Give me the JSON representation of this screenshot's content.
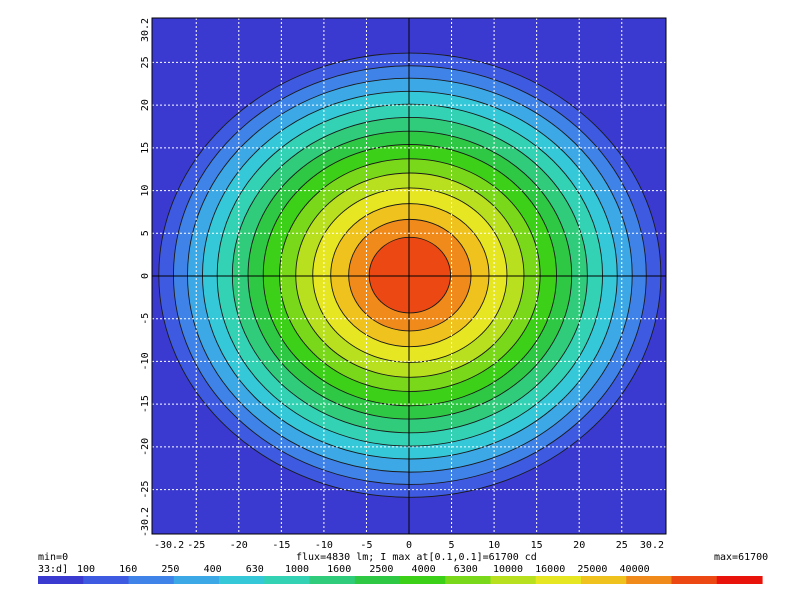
{
  "chart_data": {
    "type": "heatmap",
    "title": "",
    "xlabel": "",
    "ylabel": "",
    "xlim": [
      -30.2,
      30.2
    ],
    "ylim": [
      -30.2,
      30.2
    ],
    "x_ticks": [
      -25,
      -20,
      -15,
      -10,
      -5,
      0,
      5,
      10,
      15,
      20,
      25
    ],
    "y_ticks": [
      -25,
      -20,
      -15,
      -10,
      -5,
      0,
      5,
      10,
      15,
      20,
      25
    ],
    "x_edge_labels": [
      "-30.2",
      "30.2"
    ],
    "y_edge_labels": [
      "-30.2",
      "30.2"
    ],
    "grid": true,
    "min_label": "min=0",
    "max_label": "max=61700",
    "flux_label": "flux=4830 lm; I max at[0.1,0.1]=61700 cd",
    "scale_unit": "33:d]",
    "colorbar_ticks": [
      "100",
      "160",
      "250",
      "400",
      "630",
      "1000",
      "1600",
      "2500",
      "4000",
      "6300",
      "10000",
      "16000",
      "25000",
      "40000"
    ],
    "colorbar_colors": [
      "#3a3ad0",
      "#3e5ae0",
      "#3f82e8",
      "#3ca8e6",
      "#34c8d8",
      "#34d2b4",
      "#30cc7c",
      "#2ec844",
      "#3cd018",
      "#7ad81a",
      "#b8e01e",
      "#e6e622",
      "#f0c21e",
      "#f08a1a",
      "#ec4814",
      "#e8140c"
    ],
    "peak": {
      "x": 0.1,
      "y": 0.1,
      "value": 61700
    },
    "contour_levels": [
      100,
      160,
      250,
      400,
      630,
      1000,
      1600,
      2500,
      4000,
      6300,
      10000,
      16000,
      25000,
      40000
    ]
  }
}
